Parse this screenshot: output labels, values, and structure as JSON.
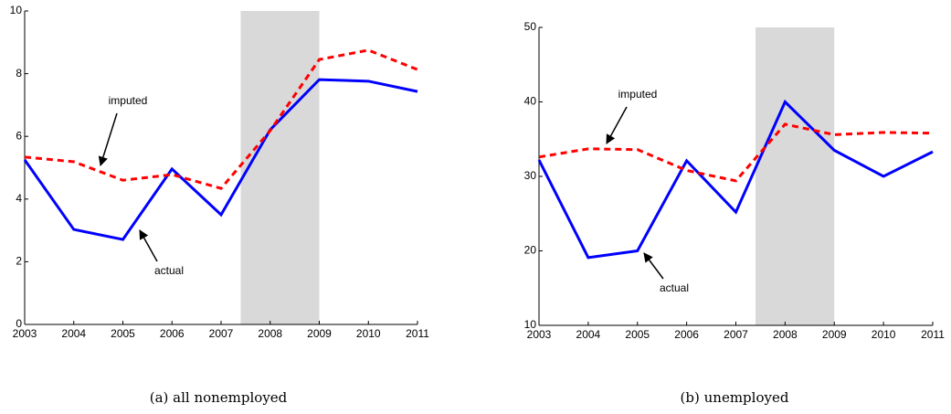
{
  "chart_data": [
    {
      "type": "line",
      "caption": "(a) all nonemployed",
      "x": [
        2003,
        2004,
        2005,
        2006,
        2007,
        2008,
        2009,
        2010,
        2011
      ],
      "xlim": [
        2003,
        2011
      ],
      "xticks": [
        2003,
        2004,
        2005,
        2006,
        2007,
        2008,
        2009,
        2010,
        2011
      ],
      "ylim": [
        0,
        10
      ],
      "yticks": [
        0,
        2,
        4,
        6,
        8,
        10
      ],
      "shaded": [
        2007.4,
        2009
      ],
      "shade_color": "#d9d9d9",
      "series": [
        {
          "name": "actual",
          "color": "#0000ff",
          "dash": false,
          "values": [
            5.25,
            3.03,
            2.71,
            4.96,
            3.5,
            6.21,
            7.81,
            7.76,
            7.43
          ]
        },
        {
          "name": "imputed",
          "color": "#ff0000",
          "dash": true,
          "values": [
            5.34,
            5.19,
            4.6,
            4.78,
            4.34,
            6.18,
            8.45,
            8.75,
            8.13
          ]
        }
      ],
      "annotations": [
        "imputed",
        "actual"
      ]
    },
    {
      "type": "line",
      "caption": "(b) unemployed",
      "x": [
        2003,
        2004,
        2005,
        2006,
        2007,
        2008,
        2009,
        2010,
        2011
      ],
      "xlim": [
        2003,
        2011
      ],
      "xticks": [
        2003,
        2004,
        2005,
        2006,
        2007,
        2008,
        2009,
        2010,
        2011
      ],
      "ylim": [
        10,
        50
      ],
      "yticks": [
        10,
        20,
        30,
        40,
        50
      ],
      "shaded": [
        2007.4,
        2009
      ],
      "shade_color": "#d9d9d9",
      "series": [
        {
          "name": "actual",
          "color": "#0000ff",
          "dash": false,
          "values": [
            32.2,
            19.1,
            20,
            32.1,
            25.2,
            40,
            33.5,
            30,
            33.3
          ]
        },
        {
          "name": "imputed",
          "color": "#ff0000",
          "dash": true,
          "values": [
            32.6,
            33.7,
            33.6,
            30.8,
            29.4,
            37,
            35.6,
            35.9,
            35.8
          ]
        }
      ],
      "annotations": [
        "imputed",
        "actual"
      ]
    }
  ]
}
